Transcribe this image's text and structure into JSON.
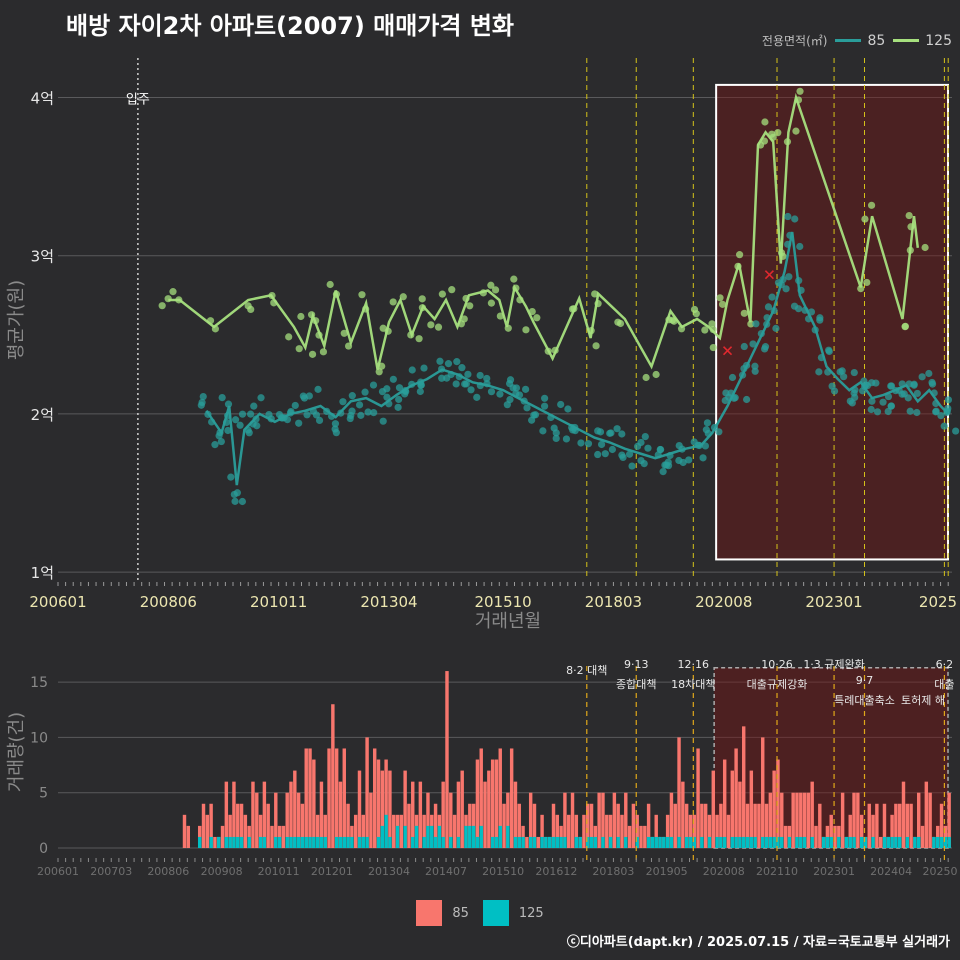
{
  "title": "배방 자이2차 아파트(2007) 매매가격 변화",
  "credit": "ⓒ디아파트(dapt.kr) / 2025.07.15 / 자료=국토교통부 실거래가",
  "legend_top": {
    "label": "전용면적(㎡)",
    "items": [
      {
        "name": "85",
        "color": "#2a9d9a"
      },
      {
        "name": "125",
        "color": "#a6e07e"
      }
    ]
  },
  "legend_bottom": {
    "items": [
      {
        "name": "85",
        "color": "#f8766d"
      },
      {
        "name": "125",
        "color": "#00bfc4"
      }
    ]
  },
  "chart_data": [
    {
      "type": "line",
      "ylabel": "평균가(원)",
      "xlabel": "거래년월",
      "x_tick_labels": [
        "200601",
        "200806",
        "201011",
        "201304",
        "201510",
        "201803",
        "202008",
        "202301",
        "2025"
      ],
      "y_ticks": [
        {
          "value": 1,
          "label": "1억"
        },
        {
          "value": 2,
          "label": "2억"
        },
        {
          "value": 3,
          "label": "3억"
        },
        {
          "value": 4,
          "label": "4억"
        }
      ],
      "ylim": [
        0.95,
        4.25
      ],
      "xlim": [
        "2006-01",
        "2025-08"
      ],
      "annotation_move_in": {
        "x": "2007-10",
        "label": "입주"
      },
      "policy_lines": [
        "2017-08",
        "2018-09",
        "2019-12",
        "2021-10",
        "2023-01",
        "2023-09",
        "2025-06",
        "2025-07"
      ],
      "highlight_box": {
        "x": [
          "2020-06",
          "2025-08"
        ],
        "y": [
          1.08,
          4.08
        ]
      },
      "series": [
        {
          "name": "125",
          "color": "#a6e07e",
          "points": [
            [
              "2008-06",
              2.72
            ],
            [
              "2008-09",
              2.72
            ],
            [
              "2009-06",
              2.55
            ],
            [
              "2010-03",
              2.72
            ],
            [
              "2010-09",
              2.75
            ],
            [
              "2011-03",
              2.55
            ],
            [
              "2011-06",
              2.42
            ],
            [
              "2011-08",
              2.62
            ],
            [
              "2011-11",
              2.43
            ],
            [
              "2012-02",
              2.78
            ],
            [
              "2012-06",
              2.45
            ],
            [
              "2012-10",
              2.7
            ],
            [
              "2013-01",
              2.28
            ],
            [
              "2013-04",
              2.58
            ],
            [
              "2013-07",
              2.72
            ],
            [
              "2013-10",
              2.5
            ],
            [
              "2014-01",
              2.68
            ],
            [
              "2014-04",
              2.6
            ],
            [
              "2014-07",
              2.72
            ],
            [
              "2014-10",
              2.55
            ],
            [
              "2015-01",
              2.75
            ],
            [
              "2015-06",
              2.78
            ],
            [
              "2015-09",
              2.72
            ],
            [
              "2015-11",
              2.55
            ],
            [
              "2016-01",
              2.8
            ],
            [
              "2016-04",
              2.68
            ],
            [
              "2016-06",
              2.58
            ],
            [
              "2016-11",
              2.35
            ],
            [
              "2017-06",
              2.73
            ],
            [
              "2017-09",
              2.48
            ],
            [
              "2017-11",
              2.76
            ],
            [
              "2018-06",
              2.6
            ],
            [
              "2019-01",
              2.3
            ],
            [
              "2019-06",
              2.65
            ],
            [
              "2019-09",
              2.55
            ],
            [
              "2020-01",
              2.6
            ],
            [
              "2020-04",
              2.55
            ],
            [
              "2020-07",
              2.48
            ],
            [
              "2020-09",
              2.72
            ],
            [
              "2020-12",
              2.95
            ],
            [
              "2021-03",
              2.58
            ],
            [
              "2021-05",
              3.7
            ],
            [
              "2021-07",
              3.78
            ],
            [
              "2021-09",
              3.72
            ],
            [
              "2021-11",
              2.95
            ],
            [
              "2022-01",
              3.78
            ],
            [
              "2022-03",
              4.0
            ],
            [
              "2023-08",
              2.8
            ],
            [
              "2023-11",
              3.25
            ],
            [
              "2024-07",
              2.6
            ],
            [
              "2024-10",
              3.25
            ],
            [
              "2024-11",
              3.05
            ]
          ]
        },
        {
          "name": "85",
          "color": "#2a9d9a",
          "points": [
            [
              "2009-04",
              2.02
            ],
            [
              "2009-08",
              1.88
            ],
            [
              "2009-10",
              2.05
            ],
            [
              "2009-12",
              1.55
            ],
            [
              "2010-02",
              1.9
            ],
            [
              "2010-06",
              2.0
            ],
            [
              "2010-10",
              1.95
            ],
            [
              "2011-02",
              2.0
            ],
            [
              "2011-06",
              2.02
            ],
            [
              "2011-10",
              2.05
            ],
            [
              "2012-02",
              1.98
            ],
            [
              "2012-06",
              2.08
            ],
            [
              "2012-10",
              2.1
            ],
            [
              "2013-02",
              2.05
            ],
            [
              "2013-06",
              2.12
            ],
            [
              "2013-10",
              2.18
            ],
            [
              "2014-02",
              2.22
            ],
            [
              "2014-06",
              2.28
            ],
            [
              "2014-10",
              2.25
            ],
            [
              "2015-02",
              2.2
            ],
            [
              "2015-06",
              2.18
            ],
            [
              "2015-10",
              2.15
            ],
            [
              "2016-02",
              2.1
            ],
            [
              "2016-06",
              2.05
            ],
            [
              "2016-10",
              2.0
            ],
            [
              "2017-02",
              1.95
            ],
            [
              "2017-06",
              1.9
            ],
            [
              "2017-10",
              1.85
            ],
            [
              "2018-02",
              1.82
            ],
            [
              "2018-06",
              1.78
            ],
            [
              "2018-10",
              1.75
            ],
            [
              "2019-02",
              1.72
            ],
            [
              "2019-06",
              1.75
            ],
            [
              "2019-10",
              1.78
            ],
            [
              "2020-02",
              1.8
            ],
            [
              "2020-05",
              1.88
            ],
            [
              "2020-09",
              2.05
            ],
            [
              "2020-12",
              2.2
            ],
            [
              "2021-03",
              2.35
            ],
            [
              "2021-06",
              2.5
            ],
            [
              "2021-09",
              2.65
            ],
            [
              "2021-12",
              2.9
            ],
            [
              "2022-02",
              3.15
            ],
            [
              "2022-04",
              2.75
            ],
            [
              "2022-08",
              2.55
            ],
            [
              "2022-11",
              2.3
            ],
            [
              "2023-02",
              2.22
            ],
            [
              "2023-05",
              2.15
            ],
            [
              "2023-08",
              2.2
            ],
            [
              "2023-11",
              2.1
            ],
            [
              "2024-02",
              2.12
            ],
            [
              "2024-05",
              2.15
            ],
            [
              "2024-08",
              2.18
            ],
            [
              "2024-11",
              2.08
            ],
            [
              "2025-02",
              2.15
            ],
            [
              "2025-05",
              2.05
            ],
            [
              "2025-07",
              2.0
            ]
          ]
        }
      ]
    },
    {
      "type": "bar",
      "ylabel": "거래량(건)",
      "y_ticks": [
        0,
        5,
        10,
        15
      ],
      "ylim": [
        0,
        17
      ],
      "x_tick_labels": [
        "200601",
        "200703",
        "200806",
        "200908",
        "201011",
        "201201",
        "201304",
        "201407",
        "201510",
        "201612",
        "201803",
        "201905",
        "202008",
        "202110",
        "202301",
        "202404",
        "20250"
      ],
      "policy_annotations": [
        {
          "x": "2017-08",
          "label": "8·2 대책"
        },
        {
          "x": "2018-09",
          "label": "9·13 종합대책"
        },
        {
          "x": "2019-12",
          "label": "12·16 18차대책"
        },
        {
          "x": "2021-10",
          "label": "10·26 대출규제강화"
        },
        {
          "x": "2023-01",
          "label": "1·3 규제완화"
        },
        {
          "x": "2023-09",
          "label": "9·7 특례대출축소"
        },
        {
          "x": "2025-06",
          "label": "6·2 대출"
        }
      ],
      "extra_label": "토허제 해",
      "highlight_box": {
        "x": [
          "2020-06",
          "2025-08"
        ]
      },
      "series": [
        {
          "name": "85",
          "color": "#f8766d"
        },
        {
          "name": "125",
          "color": "#00bfc4"
        }
      ]
    }
  ]
}
